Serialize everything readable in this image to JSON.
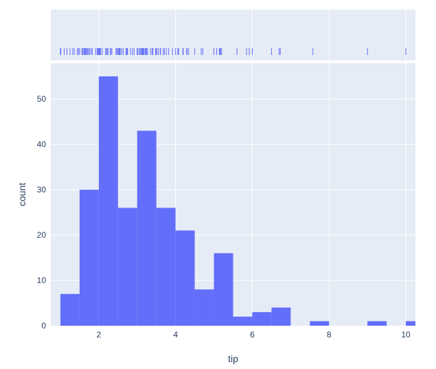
{
  "chart_data": {
    "type": "bar",
    "subtype": "histogram-with-rug-marginal",
    "xlabel": "tip",
    "ylabel": "count",
    "xlim": [
      0.75,
      10.25
    ],
    "ylim": [
      0,
      57.9
    ],
    "x_ticks": [
      2,
      4,
      6,
      8,
      10
    ],
    "y_ticks": [
      0,
      10,
      20,
      30,
      40,
      50
    ],
    "bin_width": 0.5,
    "bins": [
      {
        "start": 1.0,
        "end": 1.5,
        "count": 7
      },
      {
        "start": 1.5,
        "end": 2.0,
        "count": 30
      },
      {
        "start": 2.0,
        "end": 2.5,
        "count": 55
      },
      {
        "start": 2.5,
        "end": 3.0,
        "count": 26
      },
      {
        "start": 3.0,
        "end": 3.5,
        "count": 43
      },
      {
        "start": 3.5,
        "end": 4.0,
        "count": 26
      },
      {
        "start": 4.0,
        "end": 4.5,
        "count": 21
      },
      {
        "start": 4.5,
        "end": 5.0,
        "count": 8
      },
      {
        "start": 5.0,
        "end": 5.5,
        "count": 16
      },
      {
        "start": 5.5,
        "end": 6.0,
        "count": 2
      },
      {
        "start": 6.0,
        "end": 6.5,
        "count": 3
      },
      {
        "start": 6.5,
        "end": 7.0,
        "count": 4
      },
      {
        "start": 7.0,
        "end": 7.5,
        "count": 0
      },
      {
        "start": 7.5,
        "end": 8.0,
        "count": 1
      },
      {
        "start": 8.0,
        "end": 8.5,
        "count": 0
      },
      {
        "start": 8.5,
        "end": 9.0,
        "count": 0
      },
      {
        "start": 9.0,
        "end": 9.5,
        "count": 1
      },
      {
        "start": 9.5,
        "end": 10.0,
        "count": 0
      },
      {
        "start": 10.0,
        "end": 10.5,
        "count": 1
      }
    ],
    "rug_values": [
      1.0,
      1.01,
      1.1,
      1.17,
      1.25,
      1.32,
      1.36,
      1.44,
      1.47,
      1.5,
      1.56,
      1.58,
      1.61,
      1.63,
      1.64,
      1.66,
      1.67,
      1.68,
      1.71,
      1.73,
      1.76,
      1.8,
      1.83,
      1.92,
      1.96,
      1.97,
      1.98,
      2.0,
      2.01,
      2.02,
      2.03,
      2.05,
      2.09,
      2.18,
      2.2,
      2.23,
      2.24,
      2.3,
      2.31,
      2.34,
      2.45,
      2.47,
      2.5,
      2.52,
      2.54,
      2.55,
      2.56,
      2.6,
      2.64,
      2.71,
      2.72,
      2.74,
      2.75,
      2.83,
      2.88,
      2.92,
      3.0,
      3.02,
      3.06,
      3.08,
      3.11,
      3.12,
      3.14,
      3.15,
      3.16,
      3.18,
      3.21,
      3.23,
      3.25,
      3.27,
      3.35,
      3.39,
      3.41,
      3.48,
      3.5,
      3.51,
      3.55,
      3.6,
      3.61,
      3.68,
      3.71,
      3.76,
      3.82,
      3.92,
      4.0,
      4.06,
      4.08,
      4.19,
      4.2,
      4.29,
      4.3,
      4.34,
      4.5,
      4.67,
      4.71,
      5.0,
      5.07,
      5.14,
      5.16,
      5.17,
      5.2,
      5.6,
      5.85,
      5.92,
      6.0,
      6.5,
      6.7,
      6.73,
      7.58,
      9.0,
      10.0
    ],
    "colors": {
      "bar": "#636efa",
      "plot_bg": "#e5ecf6",
      "grid": "#ffffff",
      "text": "#2a3f5f"
    }
  }
}
